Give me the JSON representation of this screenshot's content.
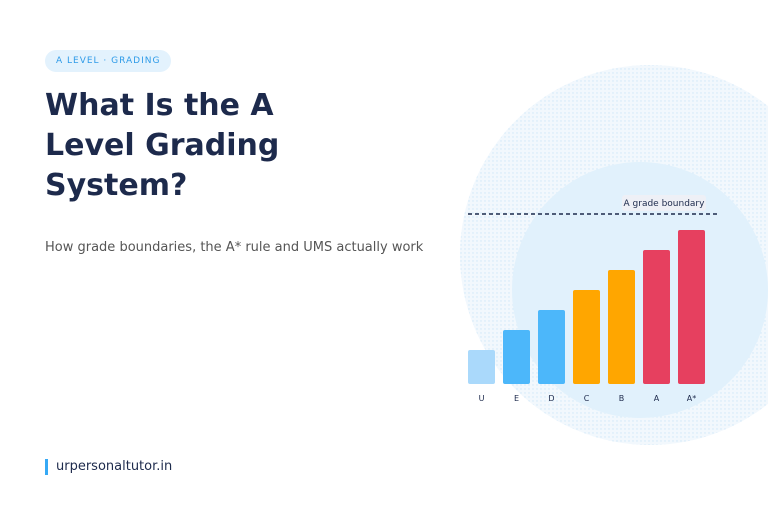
{
  "tag": "A LEVEL · GRADING",
  "title": "What Is the A Level Grading System?",
  "subtitle": "How grade boundaries, the A* rule and UMS actually work",
  "footer": "urpersonaltutor.in",
  "chart_data": {
    "type": "bar",
    "categories": [
      "U",
      "E",
      "D",
      "C",
      "B",
      "A",
      "A*"
    ],
    "values": [
      17,
      27,
      37,
      47,
      57,
      67,
      77
    ],
    "colors": [
      "#aad9fb",
      "#4cb7fa",
      "#4cb7fa",
      "#ffa600",
      "#ffa600",
      "#e6405f",
      "#e6405f"
    ],
    "ylim": [
      0,
      85
    ],
    "annotation": {
      "text": "A grade boundary",
      "value": 85
    }
  }
}
